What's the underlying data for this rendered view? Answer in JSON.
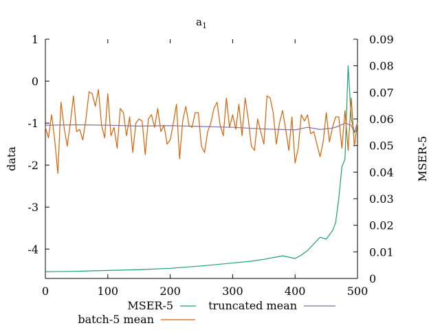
{
  "chart_data": {
    "type": "line",
    "title": "a",
    "title_subscript": "1",
    "xlabel": "",
    "ylabel": "data",
    "y2label": "MSER-5",
    "xlim": [
      0,
      500
    ],
    "ylim": [
      -4.7,
      1
    ],
    "y2lim": [
      0,
      0.09
    ],
    "x_ticks": [
      "0",
      "100",
      "200",
      "300",
      "400",
      "500"
    ],
    "y_ticks": [
      "1",
      "0",
      "-1",
      "-2",
      "-3",
      "-4"
    ],
    "y2_ticks": [
      "0",
      "0.01",
      "0.02",
      "0.03",
      "0.04",
      "0.05",
      "0.06",
      "0.07",
      "0.08",
      "0.09"
    ],
    "grid": false,
    "legend_position": "bottom",
    "colors": {
      "mser": "#1a9e77",
      "truncated": "#7570b3",
      "batch": "#d95f02"
    },
    "series": [
      {
        "name": "MSER-5",
        "axis": "right",
        "x": [
          0,
          50,
          100,
          150,
          200,
          250,
          300,
          330,
          350,
          380,
          400,
          410,
          420,
          430,
          440,
          450,
          460,
          465,
          470,
          475,
          480,
          485,
          490,
          495,
          500
        ],
        "values": [
          0.0025,
          0.0027,
          0.003,
          0.0033,
          0.0038,
          0.0047,
          0.0058,
          0.0065,
          0.0072,
          0.0085,
          0.0075,
          0.0088,
          0.0105,
          0.013,
          0.0155,
          0.0148,
          0.018,
          0.021,
          0.03,
          0.042,
          0.045,
          0.08,
          0.06,
          0.055,
          0.056
        ]
      },
      {
        "name": "truncated mean",
        "axis": "left",
        "x": [
          0,
          50,
          100,
          150,
          200,
          250,
          300,
          350,
          400,
          420,
          440,
          460,
          470,
          480,
          490,
          495,
          500
        ],
        "values": [
          -1.05,
          -1.04,
          -1.05,
          -1.07,
          -1.06,
          -1.08,
          -1.1,
          -1.14,
          -1.16,
          -1.1,
          -1.15,
          -1.12,
          -1.07,
          -1.0,
          -1.05,
          -1.23,
          -0.98
        ]
      },
      {
        "name": "batch-5 mean",
        "axis": "left",
        "x": [
          0,
          5,
          10,
          15,
          20,
          25,
          30,
          35,
          40,
          45,
          50,
          55,
          60,
          65,
          70,
          75,
          80,
          85,
          90,
          95,
          100,
          105,
          110,
          115,
          120,
          125,
          130,
          135,
          140,
          145,
          150,
          155,
          160,
          165,
          170,
          175,
          180,
          185,
          190,
          195,
          200,
          205,
          210,
          215,
          220,
          225,
          230,
          235,
          240,
          245,
          250,
          255,
          260,
          265,
          270,
          275,
          280,
          285,
          290,
          295,
          300,
          305,
          310,
          315,
          320,
          325,
          330,
          335,
          340,
          345,
          350,
          355,
          360,
          365,
          370,
          375,
          380,
          385,
          390,
          395,
          400,
          405,
          410,
          415,
          420,
          425,
          430,
          435,
          440,
          445,
          450,
          455,
          460,
          465,
          470,
          475,
          480,
          485,
          490,
          495,
          500
        ],
        "values": [
          -1.1,
          -1.35,
          -0.8,
          -1.4,
          -2.2,
          -0.5,
          -1.1,
          -1.55,
          -1.0,
          -0.35,
          -1.2,
          -1.15,
          -1.4,
          -0.9,
          -0.25,
          -0.3,
          -0.6,
          -0.2,
          -1.05,
          -1.35,
          -0.3,
          -1.3,
          -1.1,
          -1.6,
          -0.65,
          -0.75,
          -1.3,
          -0.85,
          -1.7,
          -1.0,
          -0.9,
          -0.95,
          -1.75,
          -0.9,
          -0.8,
          -1.1,
          -0.65,
          -1.2,
          -1.05,
          -1.5,
          -1.4,
          -1.0,
          -0.55,
          -1.85,
          -0.95,
          -0.6,
          -1.05,
          -1.1,
          -0.75,
          -0.75,
          -1.55,
          -1.7,
          -1.2,
          -1.0,
          -0.65,
          -0.5,
          -1.05,
          -1.3,
          -0.4,
          -1.1,
          -0.8,
          -1.15,
          -0.55,
          -1.3,
          -0.4,
          -0.9,
          -1.55,
          -1.65,
          -0.9,
          -1.2,
          -1.5,
          -0.35,
          -0.4,
          -0.75,
          -1.5,
          -1.0,
          -0.7,
          -1.15,
          -1.65,
          -0.85,
          -1.95,
          -1.6,
          -0.8,
          -0.95,
          -0.8,
          -1.25,
          -1.2,
          -1.5,
          -1.8,
          -1.45,
          -0.75,
          -1.45,
          -1.1,
          -0.85,
          -0.85,
          -1.6,
          -0.7,
          -1.65,
          -0.4,
          -1.55,
          -1.0
        ]
      }
    ]
  }
}
